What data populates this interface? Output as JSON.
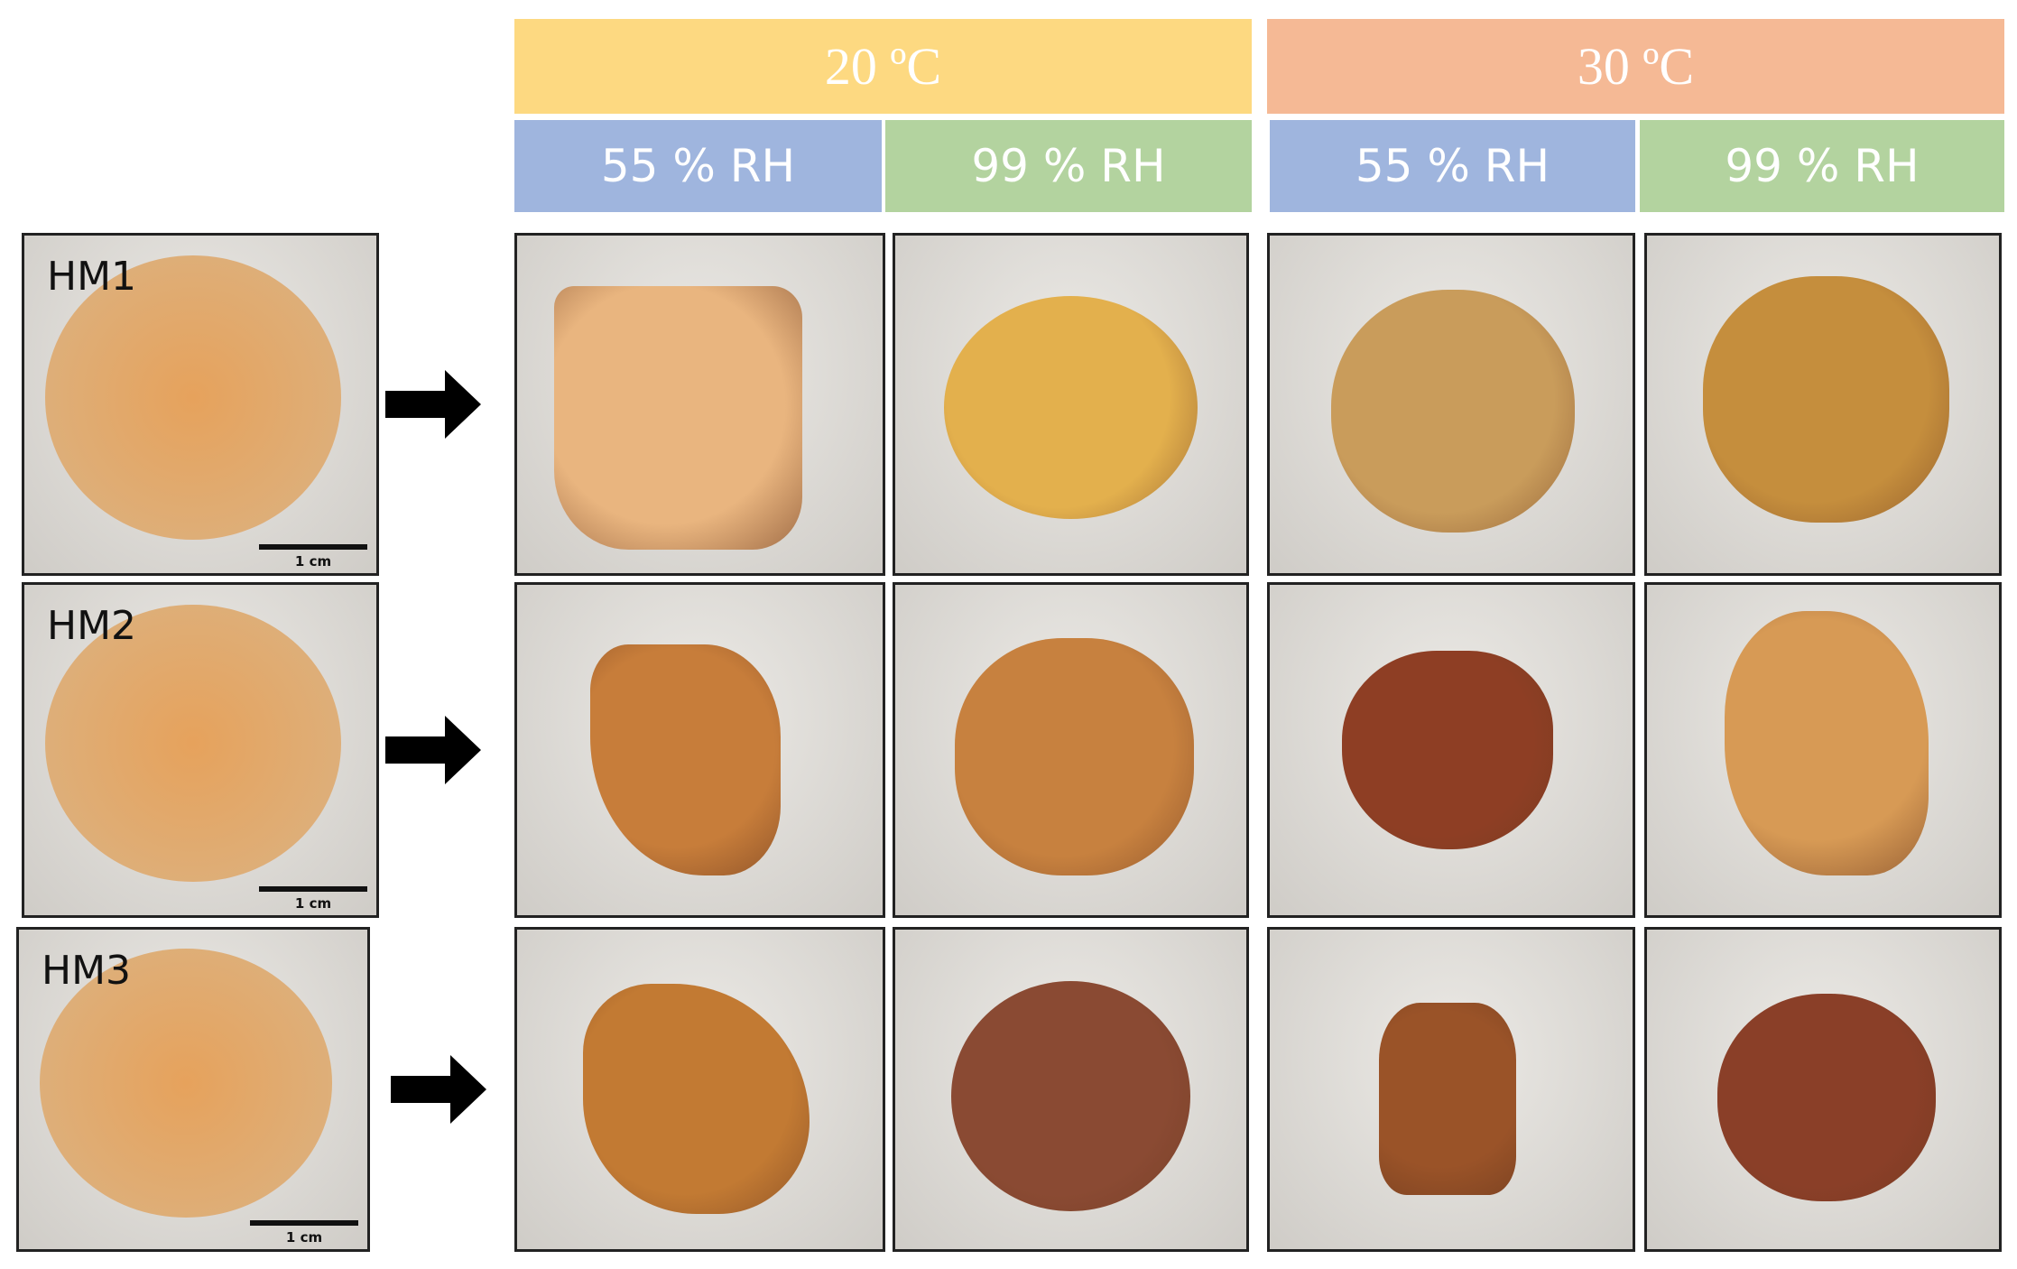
{
  "header": {
    "temperatures": [
      {
        "label": "20 ºC",
        "conditions": [
          "55 % RH",
          "99 % RH"
        ]
      },
      {
        "label": "30 ºC",
        "conditions": [
          "55 % RH",
          "99 % RH"
        ]
      }
    ]
  },
  "rows": [
    {
      "label": "HM1",
      "scale": "1 cm"
    },
    {
      "label": "HM2",
      "scale": "1 cm"
    },
    {
      "label": "HM3",
      "scale": "1 cm"
    }
  ]
}
